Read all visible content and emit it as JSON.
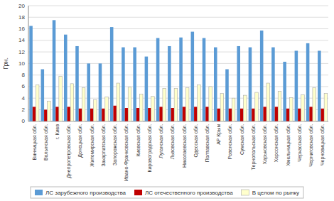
{
  "chart_data": {
    "type": "bar",
    "categories": [
      "Винницкая обл.",
      "Волынская обл.",
      "г. Киев",
      "Днепропетровская обл.",
      "Донецкая обл.",
      "Житомирская обл.",
      "Закарпатская обл.",
      "Запорожская обл.",
      "Ивано-Франковская обл.",
      "Киевская обл.",
      "Кировоградская обл.",
      "Луганская обл.",
      "Львовская обл.",
      "Николаевская обл.",
      "Одесская обл.",
      "Полтавская обл.",
      "АР Крым",
      "Ровенская обл.",
      "Сумская обл.",
      "Тернопольская обл.",
      "Харьковская обл.",
      "Херсонская обл.",
      "Хмельницкая обл.",
      "Черкасская обл.",
      "Черниговская обл.",
      "Черновицкая обл."
    ],
    "series": [
      {
        "name": "ЛС зарубежного производства",
        "color": "#5B9BD5",
        "values": [
          16.5,
          9.0,
          17.5,
          15.0,
          13.0,
          10.0,
          10.0,
          16.3,
          12.8,
          12.8,
          11.2,
          14.4,
          13.0,
          14.5,
          15.5,
          14.4,
          12.8,
          9.0,
          13.0,
          12.8,
          15.7,
          12.8,
          10.3,
          12.2,
          13.5,
          12.2
        ]
      },
      {
        "name": "ЛС отечественного производства",
        "color": "#C00000",
        "values": [
          2.5,
          2.0,
          2.5,
          2.5,
          2.2,
          2.2,
          2.2,
          2.7,
          2.3,
          2.3,
          2.3,
          2.5,
          2.3,
          2.5,
          2.5,
          2.5,
          2.2,
          2.2,
          2.2,
          2.2,
          2.5,
          2.5,
          2.2,
          2.2,
          2.5,
          2.2
        ]
      },
      {
        "name": "В целом по рынку",
        "color": "#FFFFCC",
        "values": [
          6.3,
          3.5,
          7.8,
          6.5,
          5.8,
          3.7,
          4.2,
          6.6,
          5.9,
          4.7,
          4.3,
          5.7,
          5.7,
          5.8,
          6.3,
          6.0,
          4.8,
          4.0,
          4.5,
          5.0,
          6.6,
          5.2,
          4.1,
          4.6,
          5.8,
          4.8
        ]
      }
    ],
    "ylabel": "Грн.",
    "ylim": [
      0,
      20
    ],
    "yticks": [
      0,
      2,
      4,
      6,
      8,
      10,
      12,
      14,
      16,
      18,
      20
    ],
    "grid": true,
    "legend": "bottom"
  }
}
